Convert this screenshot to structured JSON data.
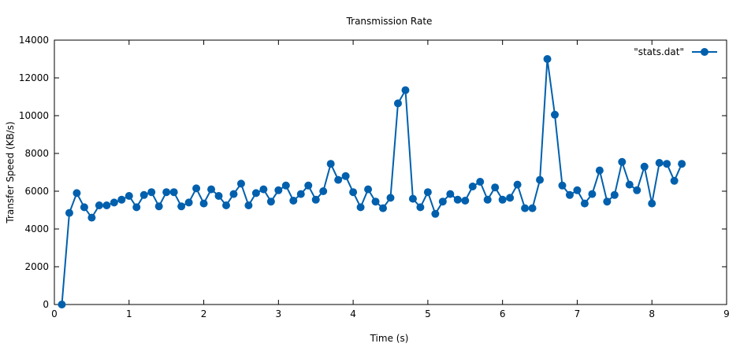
{
  "chart_data": {
    "type": "line",
    "title": "Transmission Rate",
    "xlabel": "Time (s)",
    "ylabel": "Transfer Speed (KB/s)",
    "xlim": [
      0,
      9
    ],
    "ylim": [
      0,
      14000
    ],
    "xticks": [
      0,
      1,
      2,
      3,
      4,
      5,
      6,
      7,
      8,
      9
    ],
    "yticks": [
      0,
      2000,
      4000,
      6000,
      8000,
      10000,
      12000,
      14000
    ],
    "grid": false,
    "legend_position": "top-right",
    "series": [
      {
        "name": "\"stats.dat\"",
        "color": "#0060ad",
        "marker": "circle",
        "x": [
          0.1,
          0.2,
          0.3,
          0.4,
          0.5,
          0.6,
          0.7,
          0.8,
          0.9,
          1.0,
          1.1,
          1.2,
          1.3,
          1.4,
          1.5,
          1.6,
          1.7,
          1.8,
          1.9,
          2.0,
          2.1,
          2.2,
          2.3,
          2.4,
          2.5,
          2.6,
          2.7,
          2.8,
          2.9,
          3.0,
          3.1,
          3.2,
          3.3,
          3.4,
          3.5,
          3.6,
          3.7,
          3.8,
          3.9,
          4.0,
          4.1,
          4.2,
          4.3,
          4.4,
          4.5,
          4.6,
          4.7,
          4.8,
          4.9,
          5.0,
          5.1,
          5.2,
          5.3,
          5.4,
          5.5,
          5.6,
          5.7,
          5.8,
          5.9,
          6.0,
          6.1,
          6.2,
          6.3,
          6.4,
          6.5,
          6.6,
          6.7,
          6.8,
          6.9,
          7.0,
          7.1,
          7.2,
          7.3,
          7.4,
          7.5,
          7.6,
          7.7,
          7.8,
          7.9,
          8.0,
          8.1,
          8.2,
          8.3,
          8.4
        ],
        "y": [
          0,
          4850,
          5900,
          5150,
          4600,
          5250,
          5250,
          5400,
          5550,
          5750,
          5150,
          5800,
          5950,
          5200,
          5950,
          5950,
          5200,
          5400,
          6150,
          5350,
          6100,
          5750,
          5250,
          5850,
          6400,
          5250,
          5900,
          6100,
          5450,
          6050,
          6300,
          5500,
          5850,
          6300,
          5550,
          6000,
          7450,
          6600,
          6800,
          5950,
          5150,
          6100,
          5450,
          5100,
          5650,
          10650,
          11350,
          5600,
          5150,
          5950,
          4800,
          5450,
          5850,
          5550,
          5500,
          6250,
          6500,
          5550,
          6200,
          5550,
          5650,
          6350,
          5100,
          5100,
          6600,
          13000,
          10050,
          6300,
          5800,
          6050,
          5350,
          5850,
          7100,
          5450,
          5800,
          7550,
          6350,
          6050,
          7300,
          5350,
          7500,
          7450,
          6550,
          7450
        ]
      }
    ]
  }
}
